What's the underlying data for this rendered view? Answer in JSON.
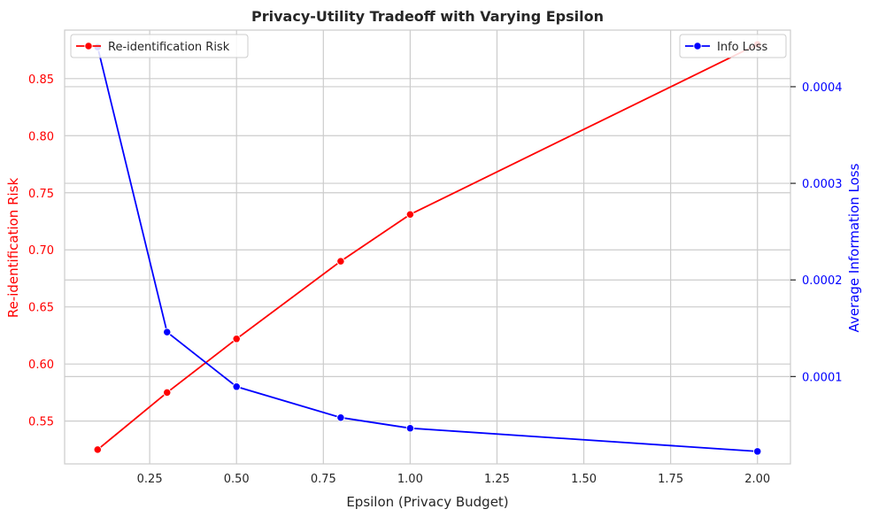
{
  "chart_data": {
    "type": "line",
    "title": "Privacy-Utility Tradeoff with Varying Epsilon",
    "xlabel": "Epsilon (Privacy Budget)",
    "ylabel_left": "Re-identification Risk",
    "ylabel_right": "Average Information Loss",
    "x": [
      0.1,
      0.3,
      0.5,
      0.8,
      1.0,
      2.0
    ],
    "xlim": [
      0.005,
      2.095
    ],
    "xticks": [
      0.25,
      0.5,
      0.75,
      1.0,
      1.25,
      1.5,
      1.75,
      2.0
    ],
    "xtick_labels": [
      "0.25",
      "0.50",
      "0.75",
      "1.00",
      "1.25",
      "1.50",
      "1.75",
      "2.00"
    ],
    "ylim_left": [
      0.5125,
      0.8925
    ],
    "yticks_left": [
      0.55,
      0.6,
      0.65,
      0.7,
      0.75,
      0.8,
      0.85
    ],
    "ytick_labels_left": [
      "0.55",
      "0.60",
      "0.65",
      "0.70",
      "0.75",
      "0.80",
      "0.85"
    ],
    "ylim_right": [
      9.6e-06,
      0.0004586
    ],
    "yticks_right": [
      0.0001,
      0.0002,
      0.0003,
      0.0004
    ],
    "ytick_labels_right": [
      "0.0001",
      "0.0002",
      "0.0003",
      "0.0004"
    ],
    "grid": true,
    "series": [
      {
        "name": "Re-identification Risk",
        "axis": "left",
        "color": "#ff0000",
        "values": [
          0.525,
          0.575,
          0.622,
          0.69,
          0.731,
          0.88
        ],
        "legend_position": "upper-left"
      },
      {
        "name": "Info Loss",
        "axis": "right",
        "color": "#0000ff",
        "values": [
          0.000441,
          0.000146,
          8.95e-05,
          5.75e-05,
          4.65e-05,
          2.25e-05
        ],
        "legend_position": "upper-right"
      }
    ]
  }
}
